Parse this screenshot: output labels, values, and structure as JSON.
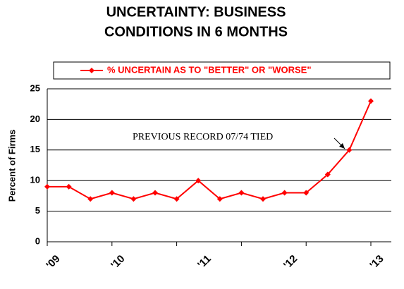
{
  "chart_data": {
    "type": "line",
    "title": [
      "UNCERTAINTY:   BUSINESS",
      "CONDITIONS  IN 6 MONTHS"
    ],
    "y_label": "Percent  of  Firms",
    "annotation": "PREVIOUS RECORD 07/74 TIED",
    "categories": [
      "'09",
      null,
      null,
      "'10",
      null,
      null,
      null,
      "'11",
      null,
      null,
      null,
      "'12",
      null,
      null,
      null,
      "'13"
    ],
    "series": [
      {
        "name": "% UNCERTAIN AS TO \"BETTER\" OR \"WORSE\"",
        "color": "#ff0000",
        "values": [
          9,
          9,
          7,
          8,
          7,
          8,
          7,
          10,
          7,
          8,
          7,
          8,
          8,
          11,
          15,
          23
        ]
      }
    ],
    "ylim": [
      0,
      25
    ],
    "yticks": [
      0,
      5,
      10,
      15,
      20,
      25
    ],
    "grid": true,
    "legend": "top"
  }
}
